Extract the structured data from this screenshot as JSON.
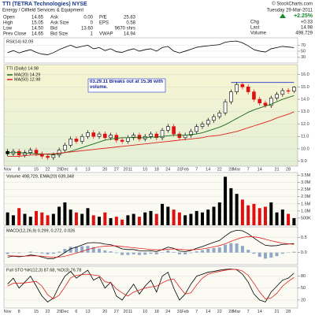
{
  "header": {
    "title": "TTI (TETRA Technologies) NYSE",
    "source": "© StockCharts.com",
    "sector": "Energy / Oilfield Services & Equipment",
    "date": "Tuesday 29-Mar-2011",
    "change_pct": "+2.25%",
    "columns": [
      [
        [
          "Open",
          "14.65"
        ],
        [
          "High",
          "15.05"
        ],
        [
          "Low",
          "14.50"
        ],
        [
          "Prev Close",
          "14.65"
        ]
      ],
      [
        [
          "Ask",
          "0.00"
        ],
        [
          "Ask Size",
          "0"
        ],
        [
          "Bid",
          "13.60"
        ],
        [
          "Bid Size",
          "1"
        ]
      ],
      [
        [
          "P/E",
          "25.83"
        ],
        [
          "EPS",
          "0.58"
        ],
        [
          "9670 shrs"
        ],
        [
          "VWAP",
          "14.94"
        ]
      ],
      [
        [
          "Chg",
          "+0.33"
        ],
        [
          "Last",
          "14.98"
        ],
        [
          "Volume",
          "498,729"
        ]
      ]
    ]
  },
  "chart_data": [
    {
      "type": "candlestick",
      "title": "TTI (Daily) 14.98",
      "annotation": "03.29.11 Breaks out at 15.36 with volume.",
      "breakout_level": 15.36,
      "breakout_color": "#2233cc",
      "up_color": "#000000",
      "down_color": "#e01010",
      "categories": [
        "Nov",
        null,
        "8",
        null,
        null,
        "15",
        null,
        "22",
        null,
        "29",
        "Dec",
        null,
        "6",
        null,
        "13",
        null,
        null,
        "20",
        null,
        "27",
        null,
        "2011",
        null,
        null,
        "10",
        null,
        "18",
        null,
        "24",
        null,
        "31",
        "Feb",
        null,
        "7",
        null,
        "14",
        null,
        "22",
        null,
        "28",
        "Mar",
        null,
        "7",
        null,
        "14",
        null,
        null,
        "21",
        null,
        "28",
        null
      ],
      "open": [
        9.8,
        9.6,
        9.8,
        9.5,
        9.7,
        9.9,
        9.6,
        9.4,
        9.3,
        9.5,
        9.9,
        10.3,
        10.8,
        10.6,
        11.0,
        11.3,
        11.0,
        11.2,
        10.9,
        11.1,
        10.7,
        10.6,
        10.9,
        11.1,
        10.8,
        11.0,
        11.2,
        10.9,
        11.5,
        11.8,
        11.2,
        10.9,
        11.1,
        11.4,
        11.8,
        12.0,
        12.3,
        12.6,
        12.9,
        13.8,
        14.6,
        15.2,
        15.0,
        14.6,
        14.0,
        13.7,
        13.5,
        14.1,
        14.4,
        14.7,
        14.65
      ],
      "high": [
        10.0,
        10.0,
        10.0,
        9.9,
        10.1,
        10.1,
        9.8,
        9.6,
        9.7,
        10.1,
        10.5,
        11.0,
        11.0,
        11.2,
        11.5,
        11.5,
        11.4,
        11.4,
        11.3,
        11.3,
        10.9,
        11.1,
        11.3,
        11.3,
        11.2,
        11.4,
        11.4,
        11.7,
        12.0,
        12.0,
        11.4,
        11.3,
        11.6,
        12.0,
        12.2,
        12.5,
        12.8,
        13.1,
        14.0,
        14.8,
        15.4,
        15.4,
        15.2,
        14.8,
        14.2,
        13.9,
        14.3,
        14.6,
        14.9,
        14.9,
        15.05
      ],
      "low": [
        9.4,
        9.4,
        9.3,
        9.3,
        9.5,
        9.4,
        9.2,
        9.1,
        9.1,
        9.3,
        9.7,
        10.1,
        10.4,
        10.4,
        10.8,
        10.8,
        10.8,
        10.7,
        10.7,
        10.5,
        10.4,
        10.4,
        10.7,
        10.6,
        10.6,
        10.8,
        10.7,
        10.7,
        11.3,
        11.0,
        10.7,
        10.7,
        10.9,
        11.2,
        11.6,
        11.8,
        12.1,
        12.4,
        12.7,
        13.6,
        14.4,
        14.8,
        14.4,
        13.8,
        13.5,
        13.3,
        13.3,
        13.9,
        14.2,
        14.45,
        14.5
      ],
      "close": [
        9.6,
        9.8,
        9.5,
        9.7,
        9.9,
        9.6,
        9.4,
        9.3,
        9.5,
        9.9,
        10.3,
        10.8,
        10.6,
        11.0,
        11.3,
        11.0,
        11.2,
        10.9,
        11.1,
        10.7,
        10.6,
        10.9,
        11.1,
        10.8,
        11.0,
        11.2,
        10.9,
        11.5,
        11.8,
        11.2,
        10.9,
        11.1,
        11.4,
        11.8,
        12.0,
        12.3,
        12.6,
        12.9,
        13.8,
        14.6,
        15.2,
        15.0,
        14.6,
        14.0,
        13.7,
        13.5,
        14.1,
        14.4,
        14.7,
        14.65,
        14.98
      ],
      "series": [
        {
          "name": "MA(20) 14.29",
          "color": "#1a6a1a",
          "values": [
            9.7,
            9.7,
            9.7,
            9.65,
            9.65,
            9.6,
            9.6,
            9.55,
            9.55,
            9.6,
            9.7,
            9.8,
            9.95,
            10.1,
            10.25,
            10.4,
            10.55,
            10.7,
            10.8,
            10.85,
            10.9,
            10.9,
            10.95,
            10.9,
            10.9,
            10.95,
            10.95,
            11.0,
            11.05,
            11.1,
            11.1,
            11.1,
            11.15,
            11.2,
            11.3,
            11.45,
            11.6,
            11.75,
            11.95,
            12.2,
            12.45,
            12.7,
            12.95,
            13.15,
            13.3,
            13.45,
            13.6,
            13.8,
            14.0,
            14.15,
            14.29
          ]
        },
        {
          "name": "MA(50) 12.98",
          "color": "#e02020",
          "values": [
            9.4,
            9.4,
            9.4,
            9.45,
            9.5,
            9.5,
            9.55,
            9.6,
            9.6,
            9.65,
            9.7,
            9.75,
            9.8,
            9.85,
            9.9,
            9.95,
            10.0,
            10.05,
            10.1,
            10.15,
            10.2,
            10.25,
            10.3,
            10.35,
            10.4,
            10.45,
            10.5,
            10.55,
            10.6,
            10.65,
            10.7,
            10.75,
            10.8,
            10.85,
            10.9,
            11.0,
            11.05,
            11.1,
            11.2,
            11.3,
            11.4,
            11.55,
            11.7,
            11.85,
            12.0,
            12.15,
            12.3,
            12.5,
            12.65,
            12.8,
            12.98
          ]
        }
      ],
      "ylim": [
        8.6,
        16.8
      ],
      "yticks": [
        {
          "value": 9,
          "label": "9.0"
        },
        {
          "value": 10,
          "label": "10.0"
        },
        {
          "value": 11,
          "label": "11.0"
        },
        {
          "value": 12,
          "label": "12.0"
        },
        {
          "value": 13,
          "label": "13.0"
        },
        {
          "value": 14,
          "label": "14.0"
        },
        {
          "value": 15,
          "label": "15.0"
        },
        {
          "value": 16,
          "label": "16.0"
        }
      ],
      "grid": true
    },
    {
      "type": "line",
      "title": "RSI(14) 62.09",
      "series": [
        {
          "color": "#000000",
          "values": [
            45,
            52,
            44,
            50,
            55,
            46,
            40,
            38,
            45,
            55,
            63,
            70,
            62,
            66,
            70,
            58,
            62,
            52,
            58,
            48,
            46,
            53,
            58,
            50,
            55,
            58,
            50,
            62,
            66,
            50,
            44,
            50,
            56,
            63,
            66,
            68,
            70,
            72,
            80,
            83,
            84,
            78,
            68,
            55,
            50,
            47,
            58,
            62,
            66,
            64,
            62.09
          ]
        }
      ],
      "ylim": [
        10,
        95
      ],
      "yticks": [
        30,
        50,
        70
      ],
      "grid": true
    },
    {
      "type": "bar",
      "title": "Volume 498,729, EMA(20) 639,348",
      "values": [
        900000,
        700000,
        1200000,
        800000,
        600000,
        1000000,
        900000,
        700000,
        800000,
        1300000,
        1600000,
        1100000,
        900000,
        800000,
        1200000,
        700000,
        600000,
        900000,
        500000,
        600000,
        400000,
        700000,
        800000,
        600000,
        900000,
        1000000,
        800000,
        1500000,
        1300000,
        1100000,
        900000,
        700000,
        800000,
        1000000,
        900000,
        1100000,
        1300000,
        1600000,
        3400000,
        2600000,
        2200000,
        1800000,
        1400000,
        1500000,
        1200000,
        1300000,
        1600000,
        900000,
        1100000,
        800000,
        498729
      ],
      "ylim": [
        0,
        3700000
      ],
      "yticks": [
        {
          "value": 500000,
          "label": "500K"
        },
        {
          "value": 1000000,
          "label": "1.0M"
        },
        {
          "value": 1500000,
          "label": "1.5M"
        },
        {
          "value": 2000000,
          "label": "2.0M"
        },
        {
          "value": 2500000,
          "label": "2.5M"
        },
        {
          "value": 3000000,
          "label": "3.0M"
        },
        {
          "value": 3500000,
          "label": "3.5M"
        }
      ],
      "grid": true
    },
    {
      "type": "line",
      "title": "MACD(12,26,9) 0.299, 0.272, 0.026",
      "series": [
        {
          "type": "bar",
          "color": "#8fa8c8",
          "values": [
            -0.05,
            -0.01,
            -0.02,
            0,
            0.03,
            0.01,
            -0.03,
            -0.06,
            -0.04,
            0.03,
            0.12,
            0.19,
            0.2,
            0.21,
            0.22,
            0.18,
            0.13,
            0.07,
            0.04,
            -0.02,
            -0.08,
            -0.08,
            -0.06,
            -0.08,
            -0.07,
            -0.04,
            -0.06,
            0.01,
            0.07,
            0.02,
            -0.06,
            -0.06,
            -0.02,
            0.04,
            0.08,
            0.12,
            0.15,
            0.17,
            0.26,
            0.31,
            0.3,
            0.22,
            0.09,
            -0.04,
            -0.14,
            -0.2,
            -0.17,
            -0.12,
            -0.04,
            -0.01,
            0.026
          ]
        },
        {
          "color": "#000000",
          "values": [
            -0.15,
            -0.12,
            -0.14,
            -0.12,
            -0.08,
            -0.1,
            -0.15,
            -0.2,
            -0.2,
            -0.12,
            0.0,
            0.12,
            0.18,
            0.25,
            0.32,
            0.33,
            0.32,
            0.28,
            0.26,
            0.2,
            0.12,
            0.1,
            0.1,
            0.06,
            0.05,
            0.06,
            0.03,
            0.1,
            0.18,
            0.14,
            0.05,
            0.03,
            0.07,
            0.14,
            0.2,
            0.27,
            0.34,
            0.4,
            0.55,
            0.68,
            0.74,
            0.72,
            0.62,
            0.48,
            0.35,
            0.24,
            0.22,
            0.23,
            0.27,
            0.28,
            0.299
          ]
        },
        {
          "color": "#e02020",
          "values": [
            -0.1,
            -0.11,
            -0.12,
            -0.12,
            -0.11,
            -0.11,
            -0.12,
            -0.14,
            -0.16,
            -0.15,
            -0.12,
            -0.07,
            -0.02,
            0.04,
            0.1,
            0.15,
            0.19,
            0.21,
            0.22,
            0.22,
            0.2,
            0.18,
            0.16,
            0.14,
            0.12,
            0.1,
            0.09,
            0.09,
            0.11,
            0.12,
            0.11,
            0.09,
            0.09,
            0.1,
            0.12,
            0.15,
            0.19,
            0.23,
            0.29,
            0.37,
            0.44,
            0.5,
            0.53,
            0.52,
            0.49,
            0.44,
            0.39,
            0.35,
            0.31,
            0.29,
            0.272
          ]
        }
      ],
      "ylim": [
        -0.4,
        0.85
      ],
      "yticks": [
        {
          "value": 0,
          "label": "0.0"
        },
        0.5
      ],
      "grid": true
    },
    {
      "type": "line",
      "title": "Full STO %K(12,3) 87.68, %D(3) 76.78",
      "series": [
        {
          "color": "#000000",
          "values": [
            60,
            75,
            50,
            65,
            80,
            55,
            30,
            15,
            25,
            55,
            80,
            92,
            75,
            85,
            95,
            70,
            78,
            50,
            65,
            30,
            20,
            40,
            60,
            35,
            55,
            70,
            40,
            80,
            90,
            50,
            20,
            35,
            60,
            80,
            85,
            90,
            92,
            95,
            97,
            98,
            96,
            85,
            65,
            35,
            20,
            15,
            40,
            55,
            70,
            75,
            87.68
          ]
        },
        {
          "color": "#e02020",
          "values": [
            55,
            62,
            62,
            63,
            65,
            67,
            55,
            33,
            23,
            32,
            53,
            76,
            82,
            84,
            85,
            83,
            81,
            66,
            64,
            48,
            38,
            30,
            40,
            45,
            50,
            53,
            55,
            63,
            70,
            73,
            53,
            35,
            38,
            58,
            75,
            85,
            89,
            92,
            95,
            97,
            97,
            93,
            82,
            62,
            40,
            23,
            25,
            37,
            55,
            67,
            76.78
          ]
        }
      ],
      "ylim": [
        0,
        105
      ],
      "yticks": [
        20,
        50,
        80
      ],
      "grid": true
    }
  ]
}
